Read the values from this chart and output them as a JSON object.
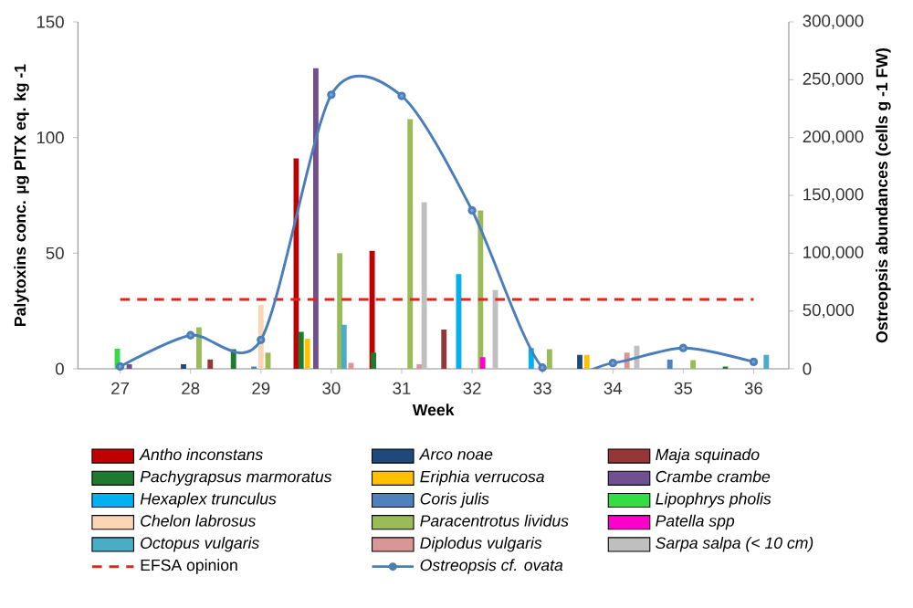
{
  "chart_data": {
    "type": "bar",
    "xlabel": "Week",
    "ylabel": "Palytoxins conc. µg PlTX eq. kg -1",
    "y2label": "Ostreopsis abundances  (cells g -1 FW)",
    "xlim": [
      26.4,
      36.5
    ],
    "xticks": [
      27,
      28,
      29,
      30,
      31,
      32,
      33,
      34,
      35,
      36
    ],
    "ylim": [
      0,
      150
    ],
    "yticks": [
      0,
      50,
      100,
      150
    ],
    "y2lim": [
      0,
      300000
    ],
    "y2ticks": [
      0,
      {
        "value": 50000,
        "label": "50,000"
      },
      {
        "value": 100000,
        "label": "100,000"
      },
      {
        "value": 150000,
        "label": "150,000"
      },
      {
        "value": 200000,
        "label": "200,000"
      },
      {
        "value": 250000,
        "label": "250,000"
      },
      {
        "value": 300000,
        "label": "300,000"
      }
    ],
    "legend": "bottom",
    "ref_lines": [
      {
        "axis": "y",
        "value": 30,
        "label": "EFSA opinion",
        "color": "#e0261c",
        "line_style": "dashed"
      }
    ],
    "series": [
      {
        "name": "Antho inconstans",
        "color": "#c00000",
        "x": [
          29.5,
          30.58
        ],
        "values": [
          91,
          51
        ]
      },
      {
        "name": "Arco noae",
        "color": "#1f497d",
        "x": [
          27.9,
          33.53
        ],
        "values": [
          2,
          6
        ]
      },
      {
        "name": "Maja squinado",
        "color": "#953735",
        "x": [
          28.28,
          31.6
        ],
        "values": [
          4,
          17
        ]
      },
      {
        "name": "Pachygrapsus marmoratus",
        "color": "#1e7a2e",
        "x": [
          28.61,
          29.57,
          30.6,
          35.6
        ],
        "values": [
          8.5,
          16,
          7,
          1
        ]
      },
      {
        "name": "Eriphia verrucosa",
        "color": "#ffc000",
        "x": [
          29.66,
          33.63
        ],
        "values": [
          13,
          6
        ]
      },
      {
        "name": "Crambe crambe",
        "color": "#705090",
        "x": [
          27.13,
          29.78
        ],
        "values": [
          2,
          130
        ]
      },
      {
        "name": "Hexaplex trunculus",
        "color": "#00b0f0",
        "x": [
          31.81,
          32.84
        ],
        "values": [
          41,
          9
        ]
      },
      {
        "name": "Coris julis",
        "color": "#4f81bd",
        "x": [
          28.9,
          34.81
        ],
        "values": [
          1,
          4
        ]
      },
      {
        "name": "Lipophrys pholis",
        "color": "#33dd44",
        "x": [
          26.96
        ],
        "values": [
          8.7
        ]
      },
      {
        "name": "Chelon labrosus",
        "color": "#fcd5b5",
        "x": [
          29.0
        ],
        "values": [
          27.6
        ]
      },
      {
        "name": "Paracentrotus lividus",
        "color": "#9bbb59",
        "x": [
          28.12,
          29.1,
          30.12,
          31.12,
          32.12,
          33.1,
          35.14
        ],
        "values": [
          18,
          7,
          50,
          108,
          68.5,
          8.5,
          3.7
        ]
      },
      {
        "name": "Patella spp",
        "color": "#ff00cc",
        "x": [
          32.15
        ],
        "values": [
          5
        ]
      },
      {
        "name": "Octopus vulgaris",
        "color": "#4bacc6",
        "x": [
          30.18,
          36.18
        ],
        "values": [
          19,
          6
        ]
      },
      {
        "name": "Diplodus vulgaris",
        "color": "#d99694",
        "x": [
          30.28,
          31.25,
          34.2
        ],
        "values": [
          2.6,
          2,
          7
        ]
      },
      {
        "name": "Sarpa salpa (< 10 cm)",
        "color": "#bfbfbf",
        "x": [
          31.32,
          32.33,
          34.34
        ],
        "values": [
          72,
          34,
          10
        ]
      },
      {
        "name": "Ostreopsis cf. ovata",
        "type": "line",
        "axis": "y2",
        "marker": "circle",
        "color": "#4a7ebb",
        "x": [
          27,
          28,
          29,
          30,
          31,
          32,
          33,
          34,
          35,
          36
        ],
        "values": [
          2000,
          29000,
          25000,
          237000,
          236000,
          137000,
          1000,
          5000,
          18000,
          6000
        ]
      }
    ]
  }
}
